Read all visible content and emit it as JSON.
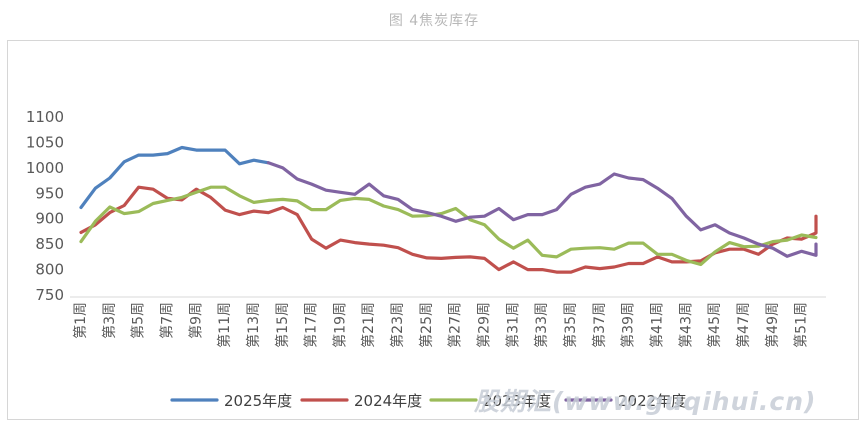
{
  "caption": "图 4焦炭库存",
  "watermark": "股期汇(www.guqihui.cn)",
  "chart_data": {
    "type": "line",
    "title": "",
    "xlabel": "",
    "ylabel": "",
    "ylim": [
      750,
      1100
    ],
    "yticks": [
      750,
      800,
      850,
      900,
      950,
      1000,
      1050,
      1100
    ],
    "grid": false,
    "legend_position": "bottom",
    "x_labels": [
      "第1周",
      "第3周",
      "第5周",
      "第7周",
      "第9周",
      "第11周",
      "第13周",
      "第15周",
      "第17周",
      "第19周",
      "第21周",
      "第23周",
      "第25周",
      "第27周",
      "第29周",
      "第31周",
      "第33周",
      "第35周",
      "第37周",
      "第39周",
      "第41周",
      "第43周",
      "第45周",
      "第47周",
      "第49周",
      "第51周"
    ],
    "weeks": 52,
    "series": [
      {
        "name": "2025年度",
        "color": "#4f81bd",
        "start_week": 1,
        "values": [
          922,
          960,
          980,
          1012,
          1025,
          1025,
          1028,
          1040,
          1035,
          1035,
          1035,
          1008,
          1015,
          1010
        ]
      },
      {
        "name": "2024年度",
        "color": "#c0504d",
        "start_week": 1,
        "values": [
          873,
          888,
          912,
          926,
          962,
          958,
          940,
          937,
          958,
          942,
          917,
          908,
          915,
          912,
          922,
          908,
          860,
          842,
          858,
          853,
          850,
          848,
          843,
          830,
          823,
          822,
          824,
          825,
          822,
          800,
          815,
          800,
          800,
          795,
          795,
          805,
          802,
          805,
          812,
          812,
          825,
          815,
          815,
          817,
          833,
          840,
          840,
          830,
          850,
          862,
          860,
          872,
          885,
          905
        ]
      },
      {
        "name": "2023年度",
        "color": "#9bbb59",
        "start_week": 1,
        "values": [
          855,
          895,
          923,
          910,
          914,
          930,
          936,
          942,
          952,
          962,
          962,
          945,
          932,
          936,
          938,
          935,
          918,
          918,
          936,
          940,
          938,
          925,
          918,
          905,
          906,
          910,
          920,
          898,
          888,
          860,
          842,
          858,
          828,
          825,
          840,
          842,
          843,
          840,
          852,
          852,
          830,
          830,
          818,
          810,
          835,
          853,
          845,
          846,
          855,
          858,
          868,
          863,
          863
        ]
      },
      {
        "name": "2022年度",
        "color": "#8064a2",
        "start_week": 14,
        "values": [
          1010,
          1000,
          978,
          968,
          956,
          952,
          948,
          968,
          945,
          938,
          918,
          912,
          905,
          895,
          903,
          905,
          920,
          898,
          908,
          908,
          918,
          948,
          962,
          968,
          988,
          980,
          977,
          960,
          940,
          905,
          878,
          888,
          872,
          862,
          850,
          842,
          826,
          836,
          828,
          850
        ]
      }
    ]
  }
}
